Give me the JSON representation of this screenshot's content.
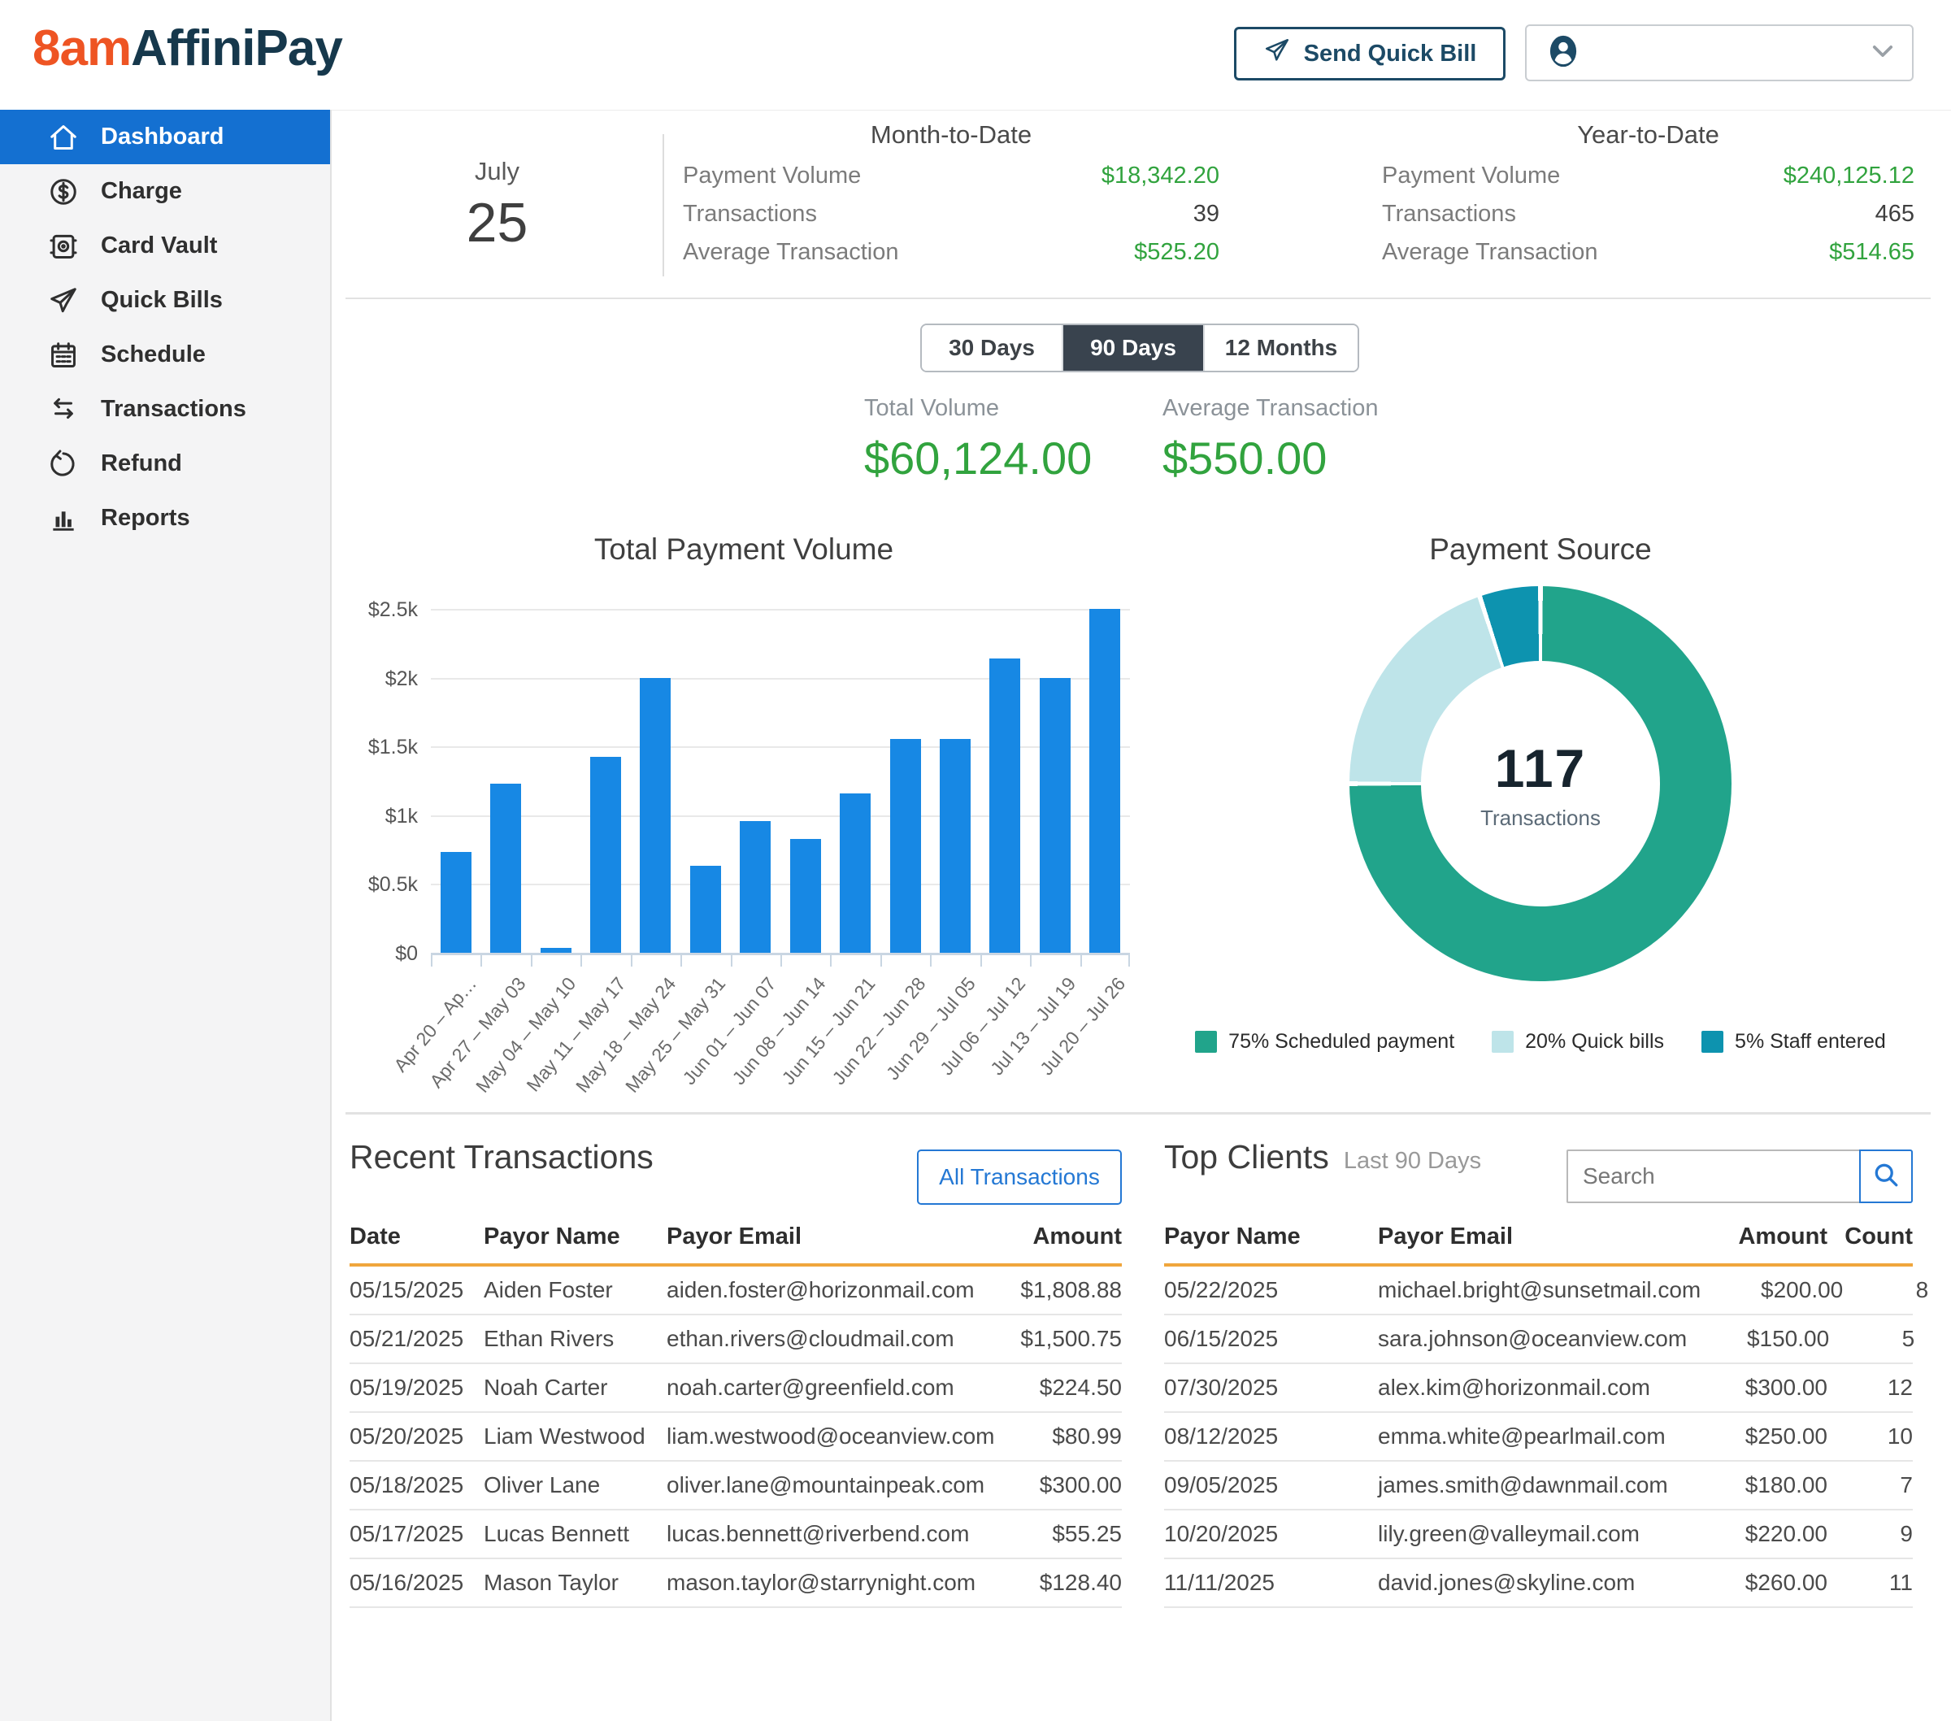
{
  "colors": {
    "logo_orange": "#ee5423",
    "logo_navy": "#16384c",
    "navy": "#1c4a66",
    "sidebar_active_bg": "#1470d1",
    "tab_active_bg": "#39434e",
    "money_green": "#31a33e",
    "bar_blue": "#1788e4",
    "orange_rule": "#f0a63c",
    "link_blue": "#2478d4"
  },
  "header": {
    "logo_8am": "8am",
    "logo_affinipay": "AffiniPay",
    "send_quick_bill_label": "Send Quick Bill"
  },
  "sidebar": {
    "items": [
      {
        "label": "Dashboard",
        "icon": "home-icon",
        "active": true
      },
      {
        "label": "Charge",
        "icon": "dollar-circle-icon",
        "active": false
      },
      {
        "label": "Card Vault",
        "icon": "card-vault-icon",
        "active": false
      },
      {
        "label": "Quick Bills",
        "icon": "paper-plane-icon",
        "active": false
      },
      {
        "label": "Schedule",
        "icon": "calendar-icon",
        "active": false
      },
      {
        "label": "Transactions",
        "icon": "transfer-arrows-icon",
        "active": false
      },
      {
        "label": "Refund",
        "icon": "refund-arrow-icon",
        "active": false
      },
      {
        "label": "Reports",
        "icon": "bar-chart-icon",
        "active": false
      }
    ]
  },
  "stats": {
    "month_label": "July",
    "day_number": "25",
    "mtd": {
      "title": "Month-to-Date",
      "rows": [
        {
          "label": "Payment Volume",
          "value": "$18,342.20",
          "green": true
        },
        {
          "label": "Transactions",
          "value": "39",
          "green": false
        },
        {
          "label": "Average Transaction",
          "value": "$525.20",
          "green": true
        }
      ]
    },
    "ytd": {
      "title": "Year-to-Date",
      "rows": [
        {
          "label": "Payment Volume",
          "value": "$240,125.12",
          "green": true
        },
        {
          "label": "Transactions",
          "value": "465",
          "green": false
        },
        {
          "label": "Average Transaction",
          "value": "$514.65",
          "green": true
        }
      ]
    }
  },
  "range_tabs": [
    {
      "label": "30 Days",
      "active": false,
      "width": 172
    },
    {
      "label": "90 Days",
      "active": true,
      "width": 172
    },
    {
      "label": "12 Months",
      "active": false,
      "width": 188
    }
  ],
  "totals": {
    "total_volume_label": "Total Volume",
    "total_volume_value": "$60,124.00",
    "avg_label": "Average Transaction",
    "avg_value": "$550.00"
  },
  "chart_data": [
    {
      "type": "bar",
      "title": "Total Payment Volume",
      "categories": [
        "Apr 20 – Ap…",
        "Apr 27 – May 03",
        "May 04 – May 10",
        "May 11 – May 17",
        "May 18 – May 24",
        "May 25 – May 31",
        "Jun 01 – Jun 07",
        "Jun 08 – Jun 14",
        "Jun 15 – Jun 21",
        "Jun 22 – Jun 28",
        "Jun 29 – Jul 05",
        "Jul 06 – Jul 12",
        "Jul 13 – Jul 19",
        "Jul 20 – Jul 26"
      ],
      "values": [
        730,
        1230,
        35,
        1425,
        2000,
        630,
        955,
        830,
        1160,
        1555,
        1555,
        2140,
        2000,
        2500
      ],
      "ylim": [
        0,
        2500
      ],
      "ytick_labels": [
        "$0",
        "$0.5k",
        "$1k",
        "$1.5k",
        "$2k",
        "$2.5k"
      ],
      "grid": true,
      "legend_position": "none",
      "xlabel": "",
      "ylabel": ""
    },
    {
      "type": "pie",
      "title": "Payment Source",
      "center_value": "117",
      "center_label": "Transactions",
      "slices": [
        {
          "label": "Scheduled payment",
          "pct": 75,
          "color": "#21a48b"
        },
        {
          "label": "Quick bills",
          "pct": 20,
          "color": "#bee4e9"
        },
        {
          "label": "Staff entered",
          "pct": 5,
          "color": "#0d93af"
        }
      ],
      "legend_position": "bottom"
    }
  ],
  "recent": {
    "title": "Recent Transactions",
    "button_label": "All Transactions",
    "headers": [
      "Date",
      "Payor Name",
      "Payor Email",
      "Amount"
    ],
    "rows": [
      [
        "05/15/2025",
        "Aiden Foster",
        "aiden.foster@horizonmail.com",
        "$1,808.88"
      ],
      [
        "05/21/2025",
        "Ethan Rivers",
        "ethan.rivers@cloudmail.com",
        "$1,500.75"
      ],
      [
        "05/19/2025",
        "Noah Carter",
        "noah.carter@greenfield.com",
        "$224.50"
      ],
      [
        "05/20/2025",
        "Liam Westwood",
        "liam.westwood@oceanview.com",
        "$80.99"
      ],
      [
        "05/18/2025",
        "Oliver Lane",
        "oliver.lane@mountainpeak.com",
        "$300.00"
      ],
      [
        "05/17/2025",
        "Lucas Bennett",
        "lucas.bennett@riverbend.com",
        "$55.25"
      ],
      [
        "05/16/2025",
        "Mason Taylor",
        "mason.taylor@starrynight.com",
        "$128.40"
      ]
    ]
  },
  "top_clients": {
    "title": "Top Clients",
    "subtitle": "Last 90 Days",
    "search_placeholder": "Search",
    "headers": [
      "Payor Name",
      "Payor Email",
      "Amount",
      "Count"
    ],
    "rows": [
      [
        "05/22/2025",
        "michael.bright@sunsetmail.com",
        "$200.00",
        "8"
      ],
      [
        "06/15/2025",
        "sara.johnson@oceanview.com",
        "$150.00",
        "5"
      ],
      [
        "07/30/2025",
        "alex.kim@horizonmail.com",
        "$300.00",
        "12"
      ],
      [
        "08/12/2025",
        "emma.white@pearlmail.com",
        "$250.00",
        "10"
      ],
      [
        "09/05/2025",
        "james.smith@dawnmail.com",
        "$180.00",
        "7"
      ],
      [
        "10/20/2025",
        "lily.green@valleymail.com",
        "$220.00",
        "9"
      ],
      [
        "11/11/2025",
        "david.jones@skyline.com",
        "$260.00",
        "11"
      ]
    ]
  }
}
